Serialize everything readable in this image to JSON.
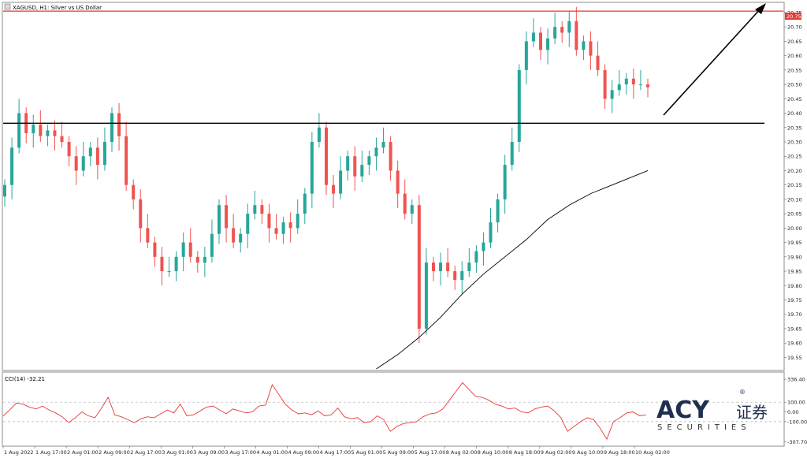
{
  "title": "XAGUSD, H1:  Silver vs US Dollar",
  "indicator_label": "CCI(14) -32.21",
  "watermark": {
    "brand": "ACY",
    "cn": "证券",
    "sub": "SECURITIES",
    "reg": "®"
  },
  "colors": {
    "bull": "#26a69a",
    "bear": "#ef5350",
    "cci": "#e53935",
    "ma": "#000000",
    "resistance": "#e53935",
    "support": "#000000",
    "arrow": "#000000"
  },
  "chart_data": [
    {
      "type": "candlestick",
      "ylim": [
        19.51,
        20.78
      ],
      "yticks": [
        "20.75",
        "20.70",
        "20.65",
        "20.60",
        "20.55",
        "20.50",
        "20.45",
        "20.40",
        "20.35",
        "20.30",
        "20.25",
        "20.20",
        "20.15",
        "20.10",
        "20.05",
        "20.00",
        "19.95",
        "19.90",
        "19.85",
        "19.80",
        "19.75",
        "19.70",
        "19.65",
        "19.60",
        "19.55"
      ],
      "last_price_label": "20.75",
      "x_labels": [
        "1 Aug 2022",
        "1 Aug 17:00",
        "2 Aug 01:00",
        "2 Aug 09:00",
        "2 Aug 17:00",
        "3 Aug 01:00",
        "3 Aug 09:00",
        "3 Aug 17:00",
        "4 Aug 01:00",
        "4 Aug 09:00",
        "4 Aug 17:00",
        "5 Aug 01:00",
        "5 Aug 09:00",
        "5 Aug 17:00",
        "8 Aug 02:00",
        "8 Aug 10:00",
        "8 Aug 18:00",
        "9 Aug 02:00",
        "9 Aug 10:00",
        "9 Aug 18:00",
        "10 Aug 02:00"
      ],
      "horizontal_lines": [
        {
          "value": 20.755,
          "role": "resistance"
        },
        {
          "value": 20.365,
          "role": "support"
        }
      ],
      "close_path": [
        20.15,
        20.28,
        20.4,
        20.33,
        20.36,
        20.32,
        20.34,
        20.32,
        20.3,
        20.25,
        20.2,
        20.25,
        20.28,
        20.22,
        20.3,
        20.4,
        20.32,
        20.15,
        20.1,
        20.0,
        19.95,
        19.9,
        19.85,
        19.85,
        19.9,
        19.95,
        19.9,
        19.88,
        19.9,
        19.98,
        20.08,
        20.0,
        19.95,
        19.98,
        20.05,
        20.08,
        20.05,
        20.0,
        19.98,
        20.02,
        20.0,
        20.05,
        20.12,
        20.3,
        20.35,
        20.15,
        20.12,
        20.2,
        20.25,
        20.18,
        20.22,
        20.25,
        20.28,
        20.3,
        20.2,
        20.12,
        20.05,
        20.08,
        19.65,
        19.88,
        19.85,
        19.88,
        19.85,
        19.82,
        19.85,
        19.88,
        19.92,
        19.95,
        20.02,
        20.1,
        20.22,
        20.3,
        20.55,
        20.65,
        20.68,
        20.62,
        20.66,
        20.7,
        20.68,
        20.72,
        20.62,
        20.65,
        20.6,
        20.55,
        20.45,
        20.48,
        20.5,
        20.52,
        20.5,
        20.5,
        20.49
      ],
      "series": [
        {
          "name": "",
          "kind": "moving-average",
          "x_index": [
            52,
            55,
            58,
            61,
            64,
            67,
            70,
            73,
            76,
            79,
            82,
            85,
            88,
            90
          ],
          "values": [
            19.51,
            19.56,
            19.62,
            19.69,
            19.77,
            19.84,
            19.9,
            19.96,
            20.03,
            20.08,
            20.12,
            20.15,
            20.18,
            20.2
          ]
        }
      ]
    },
    {
      "type": "line",
      "ylim": [
        -320,
        345
      ],
      "yticks": [
        "336.40",
        "100.00",
        "0.00",
        "-100.00",
        "-307.70"
      ],
      "series": [
        {
          "name": "",
          "values": [
            -40,
            20,
            90,
            80,
            50,
            30,
            60,
            20,
            -10,
            -50,
            -110,
            -60,
            0,
            -40,
            -60,
            40,
            150,
            -30,
            -50,
            -80,
            -110,
            -70,
            -50,
            -60,
            -20,
            20,
            -10,
            80,
            -40,
            -30,
            10,
            50,
            60,
            20,
            -20,
            30,
            10,
            -10,
            0,
            60,
            70,
            280,
            180,
            80,
            20,
            -20,
            -10,
            -30,
            10,
            -40,
            -30,
            40,
            -50,
            -70,
            -60,
            -110,
            -100,
            -40,
            -80,
            -200,
            -150,
            -120,
            -110,
            -100,
            -50,
            -20,
            -10,
            30,
            120,
            210,
            300,
            230,
            160,
            150,
            120,
            80,
            60,
            30,
            40,
            0,
            -10,
            30,
            50,
            60,
            10,
            -60,
            -200,
            -150,
            -100,
            -60,
            -80,
            -170,
            -280,
            -100,
            -60,
            -10,
            0,
            -40,
            -30
          ]
        }
      ]
    }
  ]
}
